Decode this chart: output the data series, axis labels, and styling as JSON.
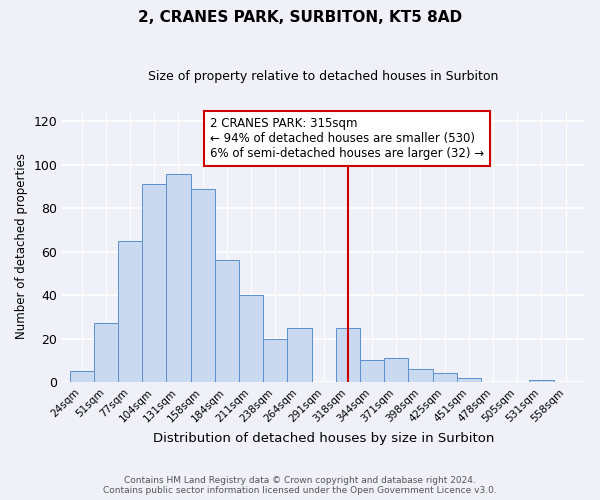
{
  "title": "2, CRANES PARK, SURBITON, KT5 8AD",
  "subtitle": "Size of property relative to detached houses in Surbiton",
  "xlabel": "Distribution of detached houses by size in Surbiton",
  "ylabel": "Number of detached properties",
  "footer_lines": [
    "Contains HM Land Registry data © Crown copyright and database right 2024.",
    "Contains public sector information licensed under the Open Government Licence v3.0."
  ],
  "bins": [
    "24sqm",
    "51sqm",
    "77sqm",
    "104sqm",
    "131sqm",
    "158sqm",
    "184sqm",
    "211sqm",
    "238sqm",
    "264sqm",
    "291sqm",
    "318sqm",
    "344sqm",
    "371sqm",
    "398sqm",
    "425sqm",
    "451sqm",
    "478sqm",
    "505sqm",
    "531sqm",
    "558sqm"
  ],
  "values": [
    5,
    27,
    65,
    91,
    96,
    89,
    56,
    40,
    20,
    25,
    0,
    25,
    10,
    11,
    6,
    4,
    2,
    0,
    0,
    1,
    0
  ],
  "bar_color": "#c8d9f0",
  "bar_edge_color": "#5b8fce",
  "vline_x_index": 11,
  "vline_color": "#cc0000",
  "annotation_title": "2 CRANES PARK: 315sqm",
  "annotation_line1": "← 94% of detached houses are smaller (530)",
  "annotation_line2": "6% of semi-detached houses are larger (32) →",
  "annotation_box_edge_color": "#cc0000",
  "ylim": [
    0,
    125
  ],
  "yticks": [
    0,
    20,
    40,
    60,
    80,
    100,
    120
  ],
  "background_color": "#f0f0f8"
}
